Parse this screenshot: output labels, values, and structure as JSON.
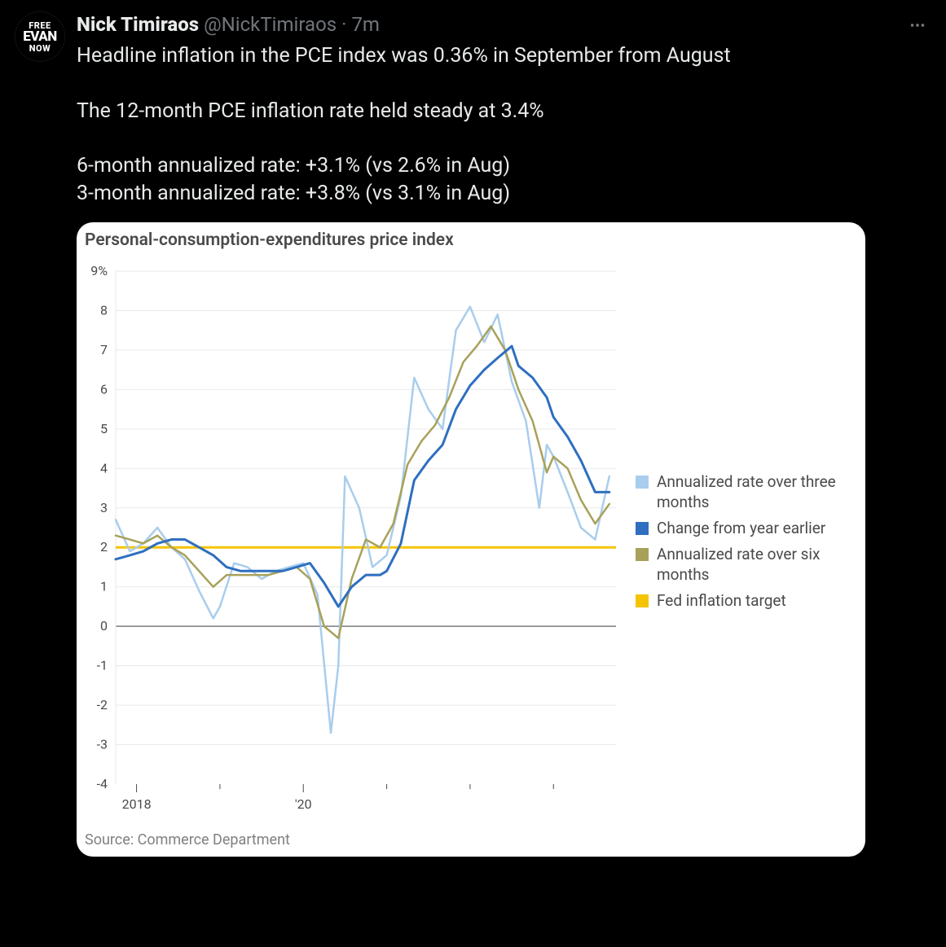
{
  "tweet": {
    "avatar_lines": [
      "FREE",
      "EVAN",
      "NOW"
    ],
    "display_name": "Nick Timiraos",
    "handle": "@NickTimiraos",
    "separator": "·",
    "time": "7m",
    "body_lines": [
      "Headline inflation in the PCE index was 0.36% in September from August",
      "",
      "The 12-month PCE inflation rate held steady at 3.4%",
      "",
      "6-month annualized rate: +3.1% (vs 2.6% in Aug)",
      "3-month annualized rate: +3.8% (vs 3.1% in Aug)"
    ]
  },
  "chart": {
    "title": "Personal-consumption-expenditures price index",
    "source": "Source: Commerce Department",
    "type": "line",
    "background_color": "#ffffff",
    "grid_color": "#e9e9e9",
    "zero_line_color": "#7a7a7a",
    "axis_color": "#4a4a4a",
    "text_color": "#4a4a4a",
    "ylim": [
      -4,
      9
    ],
    "ytick_step": 1,
    "ytick_labels": [
      "9%",
      "8",
      "7",
      "6",
      "5",
      "4",
      "3",
      "2",
      "1",
      "0",
      "-1",
      "-2",
      "-3",
      "-4"
    ],
    "x_start_year": 2017.75,
    "x_end_year": 2023.75,
    "x_ticks": [
      {
        "x": 2018,
        "label": "2018",
        "major": true
      },
      {
        "x": 2019,
        "label": "",
        "major": false
      },
      {
        "x": 2020,
        "label": "'20",
        "major": true
      },
      {
        "x": 2021,
        "label": "",
        "major": false
      },
      {
        "x": 2022,
        "label": "",
        "major": false
      },
      {
        "x": 2023,
        "label": "",
        "major": false
      }
    ],
    "target_line": {
      "value": 2,
      "color": "#f5c400",
      "width": 3
    },
    "legend": [
      {
        "label": "Annualized rate over three months",
        "color": "#a9cdec"
      },
      {
        "label": "Change from year earlier",
        "color": "#2e6fc0"
      },
      {
        "label": "Annualized rate over six months",
        "color": "#a8a15a"
      },
      {
        "label": "Fed inflation target",
        "color": "#f5c400"
      }
    ],
    "series": [
      {
        "name": "three_month",
        "color": "#a9cdec",
        "width": 2.5,
        "points": [
          [
            2017.75,
            2.7
          ],
          [
            2017.92,
            1.9
          ],
          [
            2018.08,
            2.1
          ],
          [
            2018.25,
            2.5
          ],
          [
            2018.42,
            2.0
          ],
          [
            2018.58,
            1.7
          ],
          [
            2018.75,
            0.9
          ],
          [
            2018.92,
            0.2
          ],
          [
            2019.0,
            0.5
          ],
          [
            2019.17,
            1.6
          ],
          [
            2019.33,
            1.5
          ],
          [
            2019.5,
            1.2
          ],
          [
            2019.67,
            1.4
          ],
          [
            2019.83,
            1.5
          ],
          [
            2020.0,
            1.6
          ],
          [
            2020.17,
            0.8
          ],
          [
            2020.33,
            -2.7
          ],
          [
            2020.42,
            -1.0
          ],
          [
            2020.5,
            3.8
          ],
          [
            2020.67,
            3.0
          ],
          [
            2020.83,
            1.5
          ],
          [
            2021.0,
            1.8
          ],
          [
            2021.17,
            3.3
          ],
          [
            2021.33,
            6.3
          ],
          [
            2021.5,
            5.5
          ],
          [
            2021.67,
            5.0
          ],
          [
            2021.83,
            7.5
          ],
          [
            2022.0,
            8.1
          ],
          [
            2022.17,
            7.2
          ],
          [
            2022.33,
            7.9
          ],
          [
            2022.5,
            6.2
          ],
          [
            2022.67,
            5.2
          ],
          [
            2022.83,
            3.0
          ],
          [
            2022.92,
            4.6
          ],
          [
            2023.0,
            4.3
          ],
          [
            2023.17,
            3.4
          ],
          [
            2023.33,
            2.5
          ],
          [
            2023.5,
            2.2
          ],
          [
            2023.67,
            3.8
          ]
        ]
      },
      {
        "name": "six_month",
        "color": "#a8a15a",
        "width": 2.5,
        "points": [
          [
            2017.75,
            2.3
          ],
          [
            2017.92,
            2.2
          ],
          [
            2018.08,
            2.1
          ],
          [
            2018.25,
            2.3
          ],
          [
            2018.42,
            2.0
          ],
          [
            2018.58,
            1.8
          ],
          [
            2018.75,
            1.4
          ],
          [
            2018.92,
            1.0
          ],
          [
            2019.08,
            1.3
          ],
          [
            2019.25,
            1.3
          ],
          [
            2019.42,
            1.3
          ],
          [
            2019.58,
            1.3
          ],
          [
            2019.75,
            1.4
          ],
          [
            2019.92,
            1.5
          ],
          [
            2020.08,
            1.2
          ],
          [
            2020.25,
            0.0
          ],
          [
            2020.42,
            -0.3
          ],
          [
            2020.58,
            1.2
          ],
          [
            2020.75,
            2.2
          ],
          [
            2020.92,
            2.0
          ],
          [
            2021.08,
            2.6
          ],
          [
            2021.25,
            4.1
          ],
          [
            2021.42,
            4.7
          ],
          [
            2021.58,
            5.1
          ],
          [
            2021.75,
            5.8
          ],
          [
            2021.92,
            6.7
          ],
          [
            2022.08,
            7.1
          ],
          [
            2022.25,
            7.6
          ],
          [
            2022.42,
            7.0
          ],
          [
            2022.58,
            6.0
          ],
          [
            2022.75,
            5.2
          ],
          [
            2022.92,
            3.9
          ],
          [
            2023.0,
            4.3
          ],
          [
            2023.17,
            4.0
          ],
          [
            2023.33,
            3.2
          ],
          [
            2023.5,
            2.6
          ],
          [
            2023.67,
            3.1
          ]
        ]
      },
      {
        "name": "year_over_year",
        "color": "#2e6fc0",
        "width": 3,
        "points": [
          [
            2017.75,
            1.7
          ],
          [
            2017.92,
            1.8
          ],
          [
            2018.08,
            1.9
          ],
          [
            2018.25,
            2.1
          ],
          [
            2018.42,
            2.2
          ],
          [
            2018.58,
            2.2
          ],
          [
            2018.75,
            2.0
          ],
          [
            2018.92,
            1.8
          ],
          [
            2019.08,
            1.5
          ],
          [
            2019.25,
            1.4
          ],
          [
            2019.42,
            1.4
          ],
          [
            2019.58,
            1.4
          ],
          [
            2019.75,
            1.4
          ],
          [
            2019.92,
            1.5
          ],
          [
            2020.08,
            1.6
          ],
          [
            2020.25,
            1.1
          ],
          [
            2020.42,
            0.5
          ],
          [
            2020.58,
            1.0
          ],
          [
            2020.75,
            1.3
          ],
          [
            2020.92,
            1.3
          ],
          [
            2021.0,
            1.4
          ],
          [
            2021.17,
            2.1
          ],
          [
            2021.33,
            3.7
          ],
          [
            2021.5,
            4.2
          ],
          [
            2021.67,
            4.6
          ],
          [
            2021.83,
            5.5
          ],
          [
            2022.0,
            6.1
          ],
          [
            2022.17,
            6.5
          ],
          [
            2022.33,
            6.8
          ],
          [
            2022.5,
            7.1
          ],
          [
            2022.58,
            6.6
          ],
          [
            2022.75,
            6.3
          ],
          [
            2022.92,
            5.8
          ],
          [
            2023.0,
            5.3
          ],
          [
            2023.17,
            4.8
          ],
          [
            2023.33,
            4.2
          ],
          [
            2023.5,
            3.4
          ],
          [
            2023.67,
            3.4
          ]
        ]
      }
    ]
  }
}
